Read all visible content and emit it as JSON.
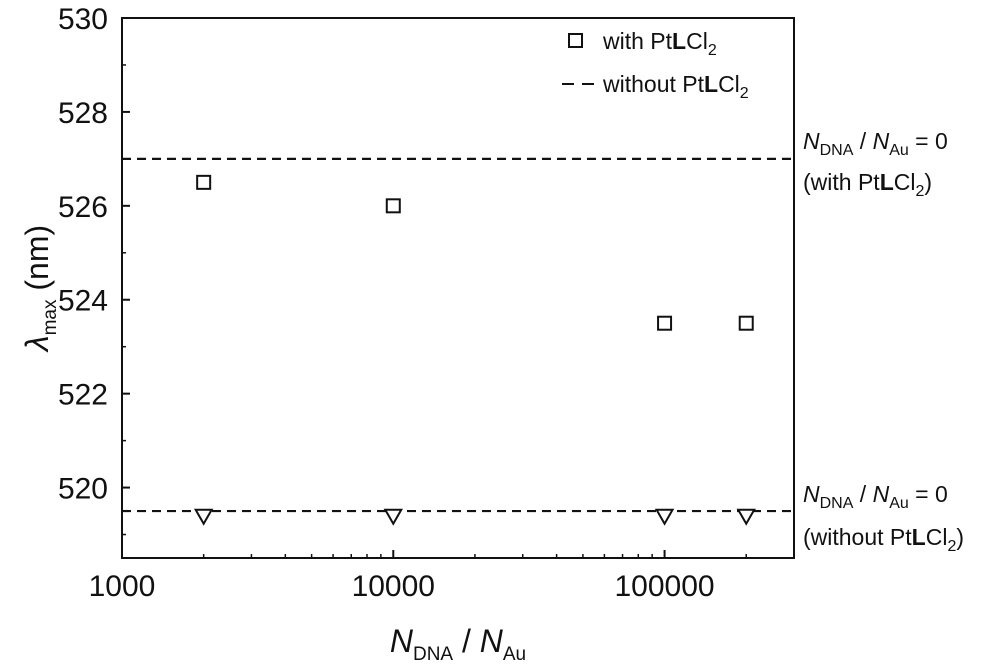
{
  "chart_data": {
    "type": "scatter",
    "xscale": "log",
    "xlim": [
      1000,
      300000
    ],
    "ylim": [
      518.5,
      530
    ],
    "xticks": [
      {
        "value": 1000,
        "label": "1000"
      },
      {
        "value": 10000,
        "label": "10000"
      },
      {
        "value": 100000,
        "label": "100000"
      }
    ],
    "yticks": [
      {
        "value": 520,
        "label": "520"
      },
      {
        "value": 522,
        "label": "522"
      },
      {
        "value": 524,
        "label": "524"
      },
      {
        "value": 526,
        "label": "526"
      },
      {
        "value": 528,
        "label": "528"
      },
      {
        "value": 530,
        "label": "530"
      }
    ],
    "xlabel": {
      "main": "N",
      "sub1": "DNA",
      "sep": " / ",
      "main2": "N",
      "sub2": "Au"
    },
    "ylabel": {
      "main": "λ",
      "sub": "max",
      "unit": " (nm)"
    },
    "legend": {
      "placement": "top-right",
      "entries": [
        {
          "marker": "square",
          "pre": "with Pt",
          "bold": "L",
          "post": "Cl",
          "sub": "2"
        },
        {
          "marker": "dash",
          "pre": "without Pt",
          "bold": "L",
          "post": "Cl",
          "sub": "2"
        }
      ]
    },
    "series": [
      {
        "name": "with PtLCl2",
        "marker": "square",
        "points": [
          {
            "x": 2000,
            "y": 526.5
          },
          {
            "x": 10000,
            "y": 526.0
          },
          {
            "x": 100000,
            "y": 523.5
          },
          {
            "x": 200000,
            "y": 523.5
          }
        ]
      },
      {
        "name": "",
        "marker": "triangle-down",
        "points": [
          {
            "x": 2000,
            "y": 519.4
          },
          {
            "x": 10000,
            "y": 519.4
          },
          {
            "x": 100000,
            "y": 519.4
          },
          {
            "x": 200000,
            "y": 519.4
          }
        ]
      }
    ],
    "reference_lines": [
      {
        "y": 527.0,
        "style": "dashed",
        "label": {
          "main": "N",
          "sub1": "DNA",
          "sep": " / ",
          "main2": "N",
          "sub2": "Au",
          "eq": " = 0",
          "line2_pre": "(with Pt",
          "line2_bold": "L",
          "line2_post": "Cl",
          "line2_sub": "2",
          "line2_end": ")"
        }
      },
      {
        "y": 519.5,
        "style": "dashed",
        "label": {
          "main": "N",
          "sub1": "DNA",
          "sep": " / ",
          "main2": "N",
          "sub2": "Au",
          "eq": " = 0",
          "line2_pre": "(without Pt",
          "line2_bold": "L",
          "line2_post": "Cl",
          "line2_sub": "2",
          "line2_end": ")"
        }
      }
    ],
    "grid": false,
    "colors": {
      "axis": "#111111",
      "marker": "#111111",
      "background": "#ffffff"
    }
  }
}
